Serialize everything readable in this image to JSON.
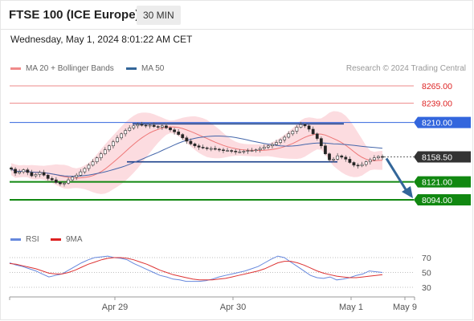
{
  "header": {
    "title": "FTSE 100 (ICE Europe)",
    "interval": "30 MIN",
    "datetime": "Wednesday, May 1, 2024 8:01:22 AM CET"
  },
  "legend": {
    "ma20_label": "MA 20 + Bollinger Bands",
    "ma50_label": "MA 50",
    "credit": "Research © 2024 Trading Central"
  },
  "rsi_legend": {
    "rsi_label": "RSI",
    "ma9_label": "9MA"
  },
  "colors": {
    "up_candle": "#dd4444",
    "down_candle": "#3a8a3a",
    "bollinger_fill": "#fbd6da",
    "ma20": "#ee7777",
    "ma50": "#4466aa",
    "pivot": "#3366dd",
    "resistance": "#ee8888",
    "support": "#118811",
    "price_tag": "#333333",
    "forecast_arrow": "#336699",
    "rsi": "#6688dd",
    "rsi_ma": "#dd3333"
  },
  "chart_data": [
    {
      "type": "candlestick",
      "title": "FTSE 100 (ICE Europe)",
      "interval": "30 MIN",
      "ylim": [
        8000,
        8300
      ],
      "x_ticks": [
        "Apr 29",
        "Apr 30",
        "May 1",
        "May 9"
      ],
      "levels": [
        {
          "value": 8265.0,
          "label": "8265.00",
          "kind": "resistance"
        },
        {
          "value": 8239.0,
          "label": "8239.00",
          "kind": "resistance"
        },
        {
          "value": 8210.0,
          "label": "8210.00",
          "kind": "pivot"
        },
        {
          "value": 8158.5,
          "label": "8158.50",
          "kind": "last"
        },
        {
          "value": 8121.0,
          "label": "8121.00",
          "kind": "support"
        },
        {
          "value": 8094.0,
          "label": "8094.00",
          "kind": "support"
        }
      ],
      "range_lines": [
        8208,
        8151
      ],
      "close_series": [
        8140,
        8134,
        8136,
        8139,
        8135,
        8130,
        8132,
        8135,
        8131,
        8126,
        8124,
        8120,
        8118,
        8119,
        8124,
        8128,
        8131,
        8136,
        8141,
        8146,
        8151,
        8157,
        8163,
        8169,
        8175,
        8181,
        8187,
        8193,
        8198,
        8202,
        8205,
        8207,
        8206,
        8205,
        8206,
        8204,
        8203,
        8205,
        8202,
        8199,
        8196,
        8192,
        8187,
        8182,
        8178,
        8175,
        8173,
        8172,
        8171,
        8171,
        8170,
        8169,
        8168,
        8168,
        8167,
        8166,
        8166,
        8167,
        8168,
        8168,
        8169,
        8171,
        8173,
        8175,
        8177,
        8180,
        8184,
        8188,
        8193,
        8197,
        8203,
        8207,
        8205,
        8200,
        8193,
        8186,
        8175,
        8163,
        8154,
        8155,
        8160,
        8158,
        8155,
        8150,
        8146,
        8145,
        8147,
        8151,
        8154,
        8157,
        8159,
        8158
      ],
      "forecast": {
        "from": 8158.5,
        "to": 8094
      }
    },
    {
      "type": "line",
      "title": "RSI",
      "yticks": [
        70,
        50,
        30
      ],
      "ylim": [
        20,
        80
      ],
      "series": [
        {
          "name": "RSI",
          "values": [
            63,
            60,
            58,
            55,
            52,
            48,
            44,
            46,
            48,
            53,
            58,
            63,
            67,
            70,
            71,
            72,
            70,
            69,
            67,
            62,
            58,
            54,
            50,
            46,
            44,
            41,
            40,
            38,
            38,
            38,
            39,
            41,
            44,
            46,
            48,
            50,
            52,
            55,
            58,
            63,
            68,
            72,
            70,
            64,
            58,
            52,
            46,
            43,
            42,
            44,
            40,
            41,
            43,
            46,
            48,
            52,
            51,
            50
          ]
        },
        {
          "name": "9MA",
          "values": [
            62,
            61,
            59,
            57,
            55,
            52,
            49,
            48,
            48,
            50,
            53,
            57,
            61,
            64,
            67,
            69,
            70,
            70,
            69,
            67,
            64,
            61,
            57,
            53,
            50,
            47,
            45,
            43,
            41,
            40,
            40,
            40,
            41,
            42,
            44,
            46,
            48,
            50,
            52,
            55,
            59,
            63,
            65,
            65,
            63,
            60,
            56,
            52,
            49,
            47,
            45,
            44,
            43,
            43,
            44,
            45,
            46,
            47
          ]
        }
      ]
    }
  ]
}
